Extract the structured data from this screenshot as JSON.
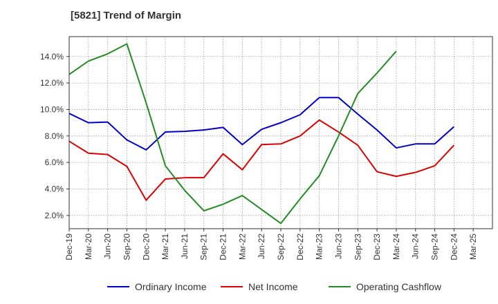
{
  "chart_data": {
    "type": "line",
    "title": "[5821]  Trend of Margin",
    "xlabel": "",
    "ylabel": "",
    "ylim": [
      1.0,
      15.5
    ],
    "y_ticks": [
      2.0,
      4.0,
      6.0,
      8.0,
      10.0,
      12.0,
      14.0
    ],
    "y_tick_labels": [
      "2.0%",
      "4.0%",
      "6.0%",
      "8.0%",
      "10.0%",
      "12.0%",
      "14.0%"
    ],
    "categories": [
      "Dec-19",
      "Mar-20",
      "Jun-20",
      "Sep-20",
      "Dec-20",
      "Mar-21",
      "Jun-21",
      "Sep-21",
      "Dec-21",
      "Mar-22",
      "Jun-22",
      "Sep-22",
      "Dec-22",
      "Mar-23",
      "Jun-23",
      "Sep-23",
      "Dec-23",
      "Mar-24",
      "Jun-24",
      "Sep-24",
      "Dec-24",
      "Mar-25"
    ],
    "grid": true,
    "legend_position": "bottom",
    "series": [
      {
        "name": "Ordinary Income",
        "color": "#0000cc",
        "values": [
          9.7,
          9.0,
          9.05,
          7.7,
          6.95,
          8.3,
          8.35,
          8.45,
          8.65,
          7.35,
          8.5,
          9.0,
          9.6,
          10.9,
          10.9,
          9.65,
          8.45,
          7.1,
          7.4,
          7.4,
          8.7,
          null
        ]
      },
      {
        "name": "Net Income",
        "color": "#dd0000",
        "values": [
          7.6,
          6.7,
          6.6,
          5.7,
          3.15,
          4.75,
          4.85,
          4.85,
          6.65,
          5.45,
          7.35,
          7.4,
          8.0,
          9.2,
          8.3,
          7.3,
          5.3,
          4.95,
          5.25,
          5.75,
          7.3,
          null
        ]
      },
      {
        "name": "Operating Cashflow",
        "color": "#228b22",
        "values": [
          12.65,
          13.65,
          14.2,
          14.95,
          10.5,
          5.75,
          3.9,
          2.35,
          2.85,
          3.5,
          2.45,
          1.4,
          3.25,
          5.0,
          8.0,
          11.2,
          12.75,
          14.4,
          null,
          null,
          null,
          null
        ]
      }
    ]
  }
}
